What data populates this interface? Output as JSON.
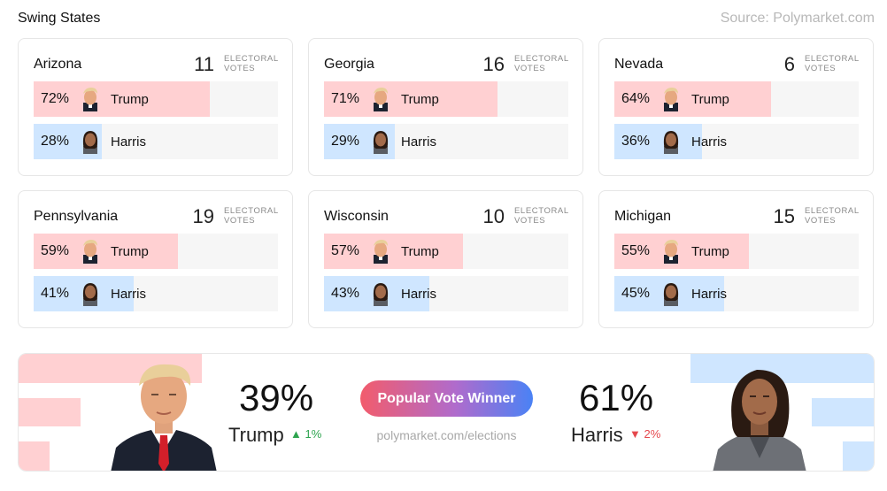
{
  "header": {
    "title": "Swing States",
    "source": "Source: Polymarket.com"
  },
  "states": [
    {
      "name": "Arizona",
      "electoral_votes": "11",
      "ev_label_1": "ELECTORAL",
      "ev_label_2": "VOTES",
      "trump": {
        "pct_label": "72%",
        "value": 72,
        "name": "Trump"
      },
      "harris": {
        "pct_label": "28%",
        "value": 28,
        "name": "Harris"
      }
    },
    {
      "name": "Georgia",
      "electoral_votes": "16",
      "ev_label_1": "ELECTORAL",
      "ev_label_2": "VOTES",
      "trump": {
        "pct_label": "71%",
        "value": 71,
        "name": "Trump"
      },
      "harris": {
        "pct_label": "29%",
        "value": 29,
        "name": "Harris"
      }
    },
    {
      "name": "Nevada",
      "electoral_votes": "6",
      "ev_label_1": "ELECTORAL",
      "ev_label_2": "VOTES",
      "trump": {
        "pct_label": "64%",
        "value": 64,
        "name": "Trump"
      },
      "harris": {
        "pct_label": "36%",
        "value": 36,
        "name": "Harris"
      }
    },
    {
      "name": "Pennsylvania",
      "electoral_votes": "19",
      "ev_label_1": "ELECTORAL",
      "ev_label_2": "VOTES",
      "trump": {
        "pct_label": "59%",
        "value": 59,
        "name": "Trump"
      },
      "harris": {
        "pct_label": "41%",
        "value": 41,
        "name": "Harris"
      }
    },
    {
      "name": "Wisconsin",
      "electoral_votes": "10",
      "ev_label_1": "ELECTORAL",
      "ev_label_2": "VOTES",
      "trump": {
        "pct_label": "57%",
        "value": 57,
        "name": "Trump"
      },
      "harris": {
        "pct_label": "43%",
        "value": 43,
        "name": "Harris"
      }
    },
    {
      "name": "Michigan",
      "electoral_votes": "15",
      "ev_label_1": "ELECTORAL",
      "ev_label_2": "VOTES",
      "trump": {
        "pct_label": "55%",
        "value": 55,
        "name": "Trump"
      },
      "harris": {
        "pct_label": "45%",
        "value": 45,
        "name": "Harris"
      }
    }
  ],
  "popular_vote": {
    "button_label": "Popular Vote Winner",
    "url": "polymarket.com/elections",
    "trump": {
      "pct": "39%",
      "name": "Trump",
      "change": "1%",
      "change_dir": "up"
    },
    "harris": {
      "pct": "61%",
      "name": "Harris",
      "change": "2%",
      "change_dir": "down"
    }
  },
  "colors": {
    "trump_fill": "#ffd0d2",
    "harris_fill": "#cfe6ff",
    "up": "#2ea44f",
    "down": "#e5484d",
    "button_gradient_start": "#f25c6c",
    "button_gradient_end": "#4a82f5"
  }
}
